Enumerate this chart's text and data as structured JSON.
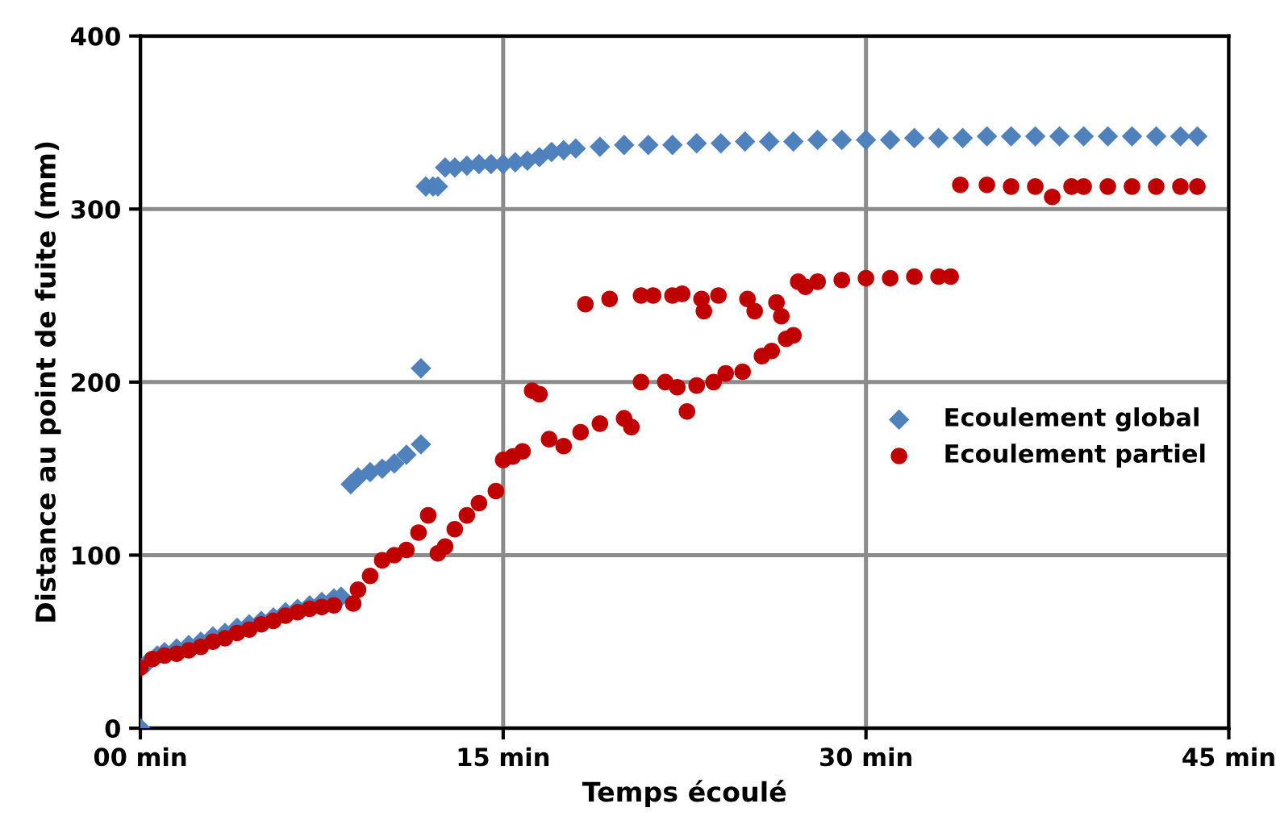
{
  "chart_data": {
    "type": "scatter",
    "xlabel": "Temps écoulé",
    "ylabel": "Distance au point de fuite (mm)",
    "xlim": [
      0,
      45
    ],
    "ylim": [
      0,
      400
    ],
    "xticks": [
      {
        "value": 0,
        "label": "00 min"
      },
      {
        "value": 15,
        "label": "15 min"
      },
      {
        "value": 30,
        "label": "30 min"
      },
      {
        "value": 45,
        "label": "45 min"
      }
    ],
    "yticks": [
      0,
      100,
      200,
      300,
      400
    ],
    "grid": true,
    "legend": "right",
    "series": [
      {
        "name": "Ecoulement global",
        "color": "#4f81bd",
        "marker": "diamond",
        "x": [
          0,
          0.3,
          0.7,
          1,
          1.5,
          2,
          2.5,
          3,
          3.5,
          4,
          4.5,
          5,
          5.5,
          6,
          6.5,
          7,
          7.5,
          8,
          8.3,
          8.7,
          9,
          9.5,
          10,
          10.5,
          11,
          11.6,
          11.6,
          11.8,
          12.1,
          12.3,
          12.6,
          13,
          13.5,
          14,
          14.5,
          15,
          15.5,
          16,
          16.5,
          17,
          17.5,
          18,
          19,
          20,
          21,
          22,
          23,
          24,
          25,
          26,
          27,
          28,
          29,
          30,
          31,
          32,
          33,
          34,
          35,
          36,
          37,
          38,
          39,
          40,
          41,
          42,
          43,
          43.7
        ],
        "values": [
          0,
          38,
          42,
          44,
          46,
          48,
          50,
          53,
          55,
          58,
          60,
          62,
          64,
          67,
          69,
          71,
          73,
          75,
          76,
          141,
          145,
          148,
          150,
          153,
          158,
          164,
          208,
          313,
          313,
          313,
          324,
          324,
          325,
          326,
          326,
          326,
          327,
          328,
          330,
          333,
          334,
          335,
          336,
          337,
          337,
          337,
          338,
          338,
          339,
          339,
          339,
          340,
          340,
          340,
          340,
          341,
          341,
          341,
          342,
          342,
          342,
          342,
          342,
          342,
          342,
          342,
          342,
          342
        ]
      },
      {
        "name": "Ecoulement partiel",
        "color": "#c00000",
        "marker": "circle",
        "x": [
          0,
          0.5,
          1,
          1.5,
          2,
          2.5,
          3,
          3.5,
          4,
          4.5,
          5,
          5.5,
          6,
          6.5,
          7,
          7.5,
          8,
          8.8,
          9,
          9.5,
          10,
          10.5,
          11,
          11.5,
          11.9,
          12.3,
          12.6,
          13,
          13.5,
          14,
          14.7,
          15,
          15.4,
          15.8,
          16.2,
          16.5,
          16.9,
          17.5,
          18.2,
          18.4,
          19,
          19.4,
          20,
          20.3,
          20.7,
          20.7,
          21.2,
          21.7,
          22,
          22.2,
          22.4,
          22.6,
          23,
          23.2,
          23.3,
          23.7,
          23.9,
          24.2,
          24.9,
          25.1,
          25.4,
          25.7,
          26.1,
          26.3,
          26.5,
          26.7,
          27,
          27.2,
          27.5,
          28,
          29,
          30,
          31,
          32,
          33,
          33.5,
          33.9,
          35,
          36,
          37,
          37.7,
          38.5,
          39,
          40,
          41,
          42,
          43,
          43.7
        ],
        "values": [
          35,
          40,
          42,
          43,
          45,
          47,
          50,
          52,
          55,
          57,
          60,
          62,
          65,
          67,
          69,
          70,
          71,
          72,
          80,
          88,
          97,
          100,
          103,
          113,
          123,
          101,
          105,
          115,
          123,
          130,
          137,
          155,
          157,
          160,
          195,
          193,
          167,
          163,
          171,
          245,
          176,
          248,
          179,
          174,
          200,
          250,
          250,
          200,
          250,
          197,
          251,
          183,
          198,
          248,
          241,
          200,
          250,
          205,
          206,
          248,
          241,
          215,
          218,
          246,
          238,
          225,
          227,
          258,
          255,
          258,
          259,
          260,
          260,
          261,
          261,
          261,
          314,
          314,
          313,
          313,
          307,
          313,
          313,
          313,
          313,
          313,
          313,
          313
        ]
      }
    ]
  }
}
